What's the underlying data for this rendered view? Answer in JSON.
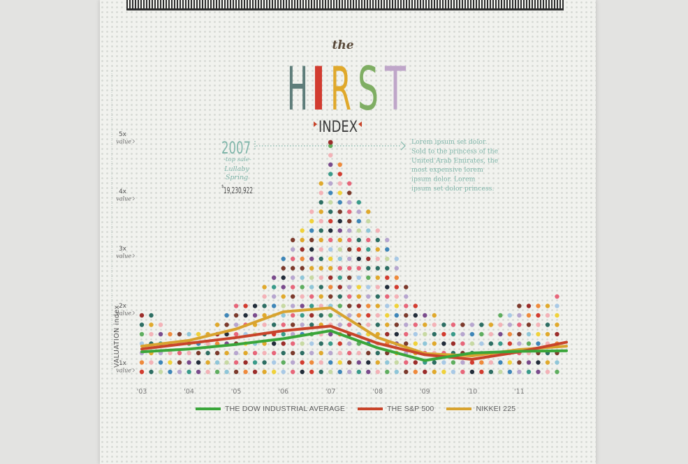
{
  "header": {
    "the": "the",
    "title_letters": [
      {
        "char": "H",
        "color": "#5e7d7a"
      },
      {
        "char": "I",
        "color": "#d23c30"
      },
      {
        "char": "R",
        "color": "#e0a92c"
      },
      {
        "char": "S",
        "color": "#7fae63"
      },
      {
        "char": "T",
        "color": "#bfa6c9"
      }
    ],
    "subtitle": "INDEX"
  },
  "callout": {
    "year": "2007",
    "label": "-top sale-",
    "title_line1": "Lullaby",
    "title_line2": "Spring",
    "price_symbol": "$",
    "price": "19,230,922"
  },
  "note": {
    "lines": [
      "Lorem ipsum set dolor.",
      "Sold to the princess of the",
      "United Arab Emirates, the",
      "most expensive lorem",
      "ipsum dolor. Lorem",
      "ipsum set dolor princess."
    ]
  },
  "dot_palette": [
    "#d23c30",
    "#e0a92c",
    "#5fae5f",
    "#3e86b8",
    "#e7667a",
    "#ef8a3c",
    "#7a4b8c",
    "#2d6e63",
    "#f0d23a",
    "#8fc6d8",
    "#b7a6cf",
    "#222d3a",
    "#9b2d2a",
    "#f3b2b7",
    "#c7d9a3",
    "#a8c9e6",
    "#7c3a2c",
    "#3a9b8a"
  ],
  "chart_data": {
    "type": "line",
    "title": "the HIRST INDEX",
    "xlabel": "",
    "ylabel": "VALUATION index",
    "y_ticks": [
      {
        "num": "1x",
        "sub": "value",
        "v": 1
      },
      {
        "num": "2x",
        "sub": "value",
        "v": 2
      },
      {
        "num": "3x",
        "sub": "value",
        "v": 3
      },
      {
        "num": "4x",
        "sub": "value",
        "v": 4
      },
      {
        "num": "5x",
        "sub": "value",
        "v": 5
      }
    ],
    "categories": [
      "'03",
      "'04",
      "'05",
      "'06",
      "'07",
      "'08",
      "'09",
      "'10",
      "'11"
    ],
    "ylim": [
      0.9,
      5.2
    ],
    "x": [
      2003,
      2004,
      2005,
      2006,
      2007,
      2008,
      2009,
      2010,
      2011,
      2012
    ],
    "series": [
      {
        "name": "THE DOW INDUSTRIAL AVERAGE",
        "color": "#3aa63a",
        "values": [
          1.35,
          1.4,
          1.48,
          1.58,
          1.72,
          1.42,
          1.2,
          1.33,
          1.36,
          1.37
        ]
      },
      {
        "name": "THE S&P 500",
        "color": "#c8442a",
        "values": [
          1.4,
          1.5,
          1.6,
          1.72,
          1.8,
          1.5,
          1.3,
          1.22,
          1.35,
          1.52
        ]
      },
      {
        "name": "NIKKEI 225",
        "color": "#d8a32f",
        "values": [
          1.45,
          1.55,
          1.75,
          2.05,
          2.12,
          1.6,
          1.32,
          1.28,
          1.39,
          1.45
        ]
      }
    ],
    "dot_heights": [
      {
        "x": 2003.0,
        "y": 2.0
      },
      {
        "x": 2003.2,
        "y": 2.0
      },
      {
        "x": 2003.4,
        "y": 1.9
      },
      {
        "x": 2003.6,
        "y": 1.8
      },
      {
        "x": 2003.8,
        "y": 1.8
      },
      {
        "x": 2004.0,
        "y": 1.8
      },
      {
        "x": 2004.2,
        "y": 1.8
      },
      {
        "x": 2004.4,
        "y": 1.8
      },
      {
        "x": 2004.6,
        "y": 1.9
      },
      {
        "x": 2004.8,
        "y": 2.0
      },
      {
        "x": 2005.0,
        "y": 2.2
      },
      {
        "x": 2005.2,
        "y": 2.2
      },
      {
        "x": 2005.4,
        "y": 2.3
      },
      {
        "x": 2005.6,
        "y": 2.5
      },
      {
        "x": 2005.8,
        "y": 2.8
      },
      {
        "x": 2006.0,
        "y": 3.0
      },
      {
        "x": 2006.2,
        "y": 3.4
      },
      {
        "x": 2006.4,
        "y": 3.6
      },
      {
        "x": 2006.6,
        "y": 3.9
      },
      {
        "x": 2006.8,
        "y": 4.3
      },
      {
        "x": 2007.0,
        "y": 5.0
      },
      {
        "x": 2007.2,
        "y": 4.7
      },
      {
        "x": 2007.4,
        "y": 4.4
      },
      {
        "x": 2007.6,
        "y": 4.1
      },
      {
        "x": 2007.8,
        "y": 3.8
      },
      {
        "x": 2008.0,
        "y": 3.5
      },
      {
        "x": 2008.2,
        "y": 3.3
      },
      {
        "x": 2008.4,
        "y": 3.0
      },
      {
        "x": 2008.6,
        "y": 2.6
      },
      {
        "x": 2008.8,
        "y": 2.3
      },
      {
        "x": 2009.0,
        "y": 2.1
      },
      {
        "x": 2009.2,
        "y": 2.0
      },
      {
        "x": 2009.4,
        "y": 1.9
      },
      {
        "x": 2009.6,
        "y": 1.9
      },
      {
        "x": 2009.8,
        "y": 1.9
      },
      {
        "x": 2010.0,
        "y": 1.9
      },
      {
        "x": 2010.2,
        "y": 1.9
      },
      {
        "x": 2010.4,
        "y": 1.9
      },
      {
        "x": 2010.6,
        "y": 2.0
      },
      {
        "x": 2010.8,
        "y": 2.1
      },
      {
        "x": 2011.0,
        "y": 2.2
      },
      {
        "x": 2011.2,
        "y": 2.2
      },
      {
        "x": 2011.4,
        "y": 2.3
      },
      {
        "x": 2011.6,
        "y": 2.3
      },
      {
        "x": 2011.8,
        "y": 2.4
      }
    ]
  }
}
